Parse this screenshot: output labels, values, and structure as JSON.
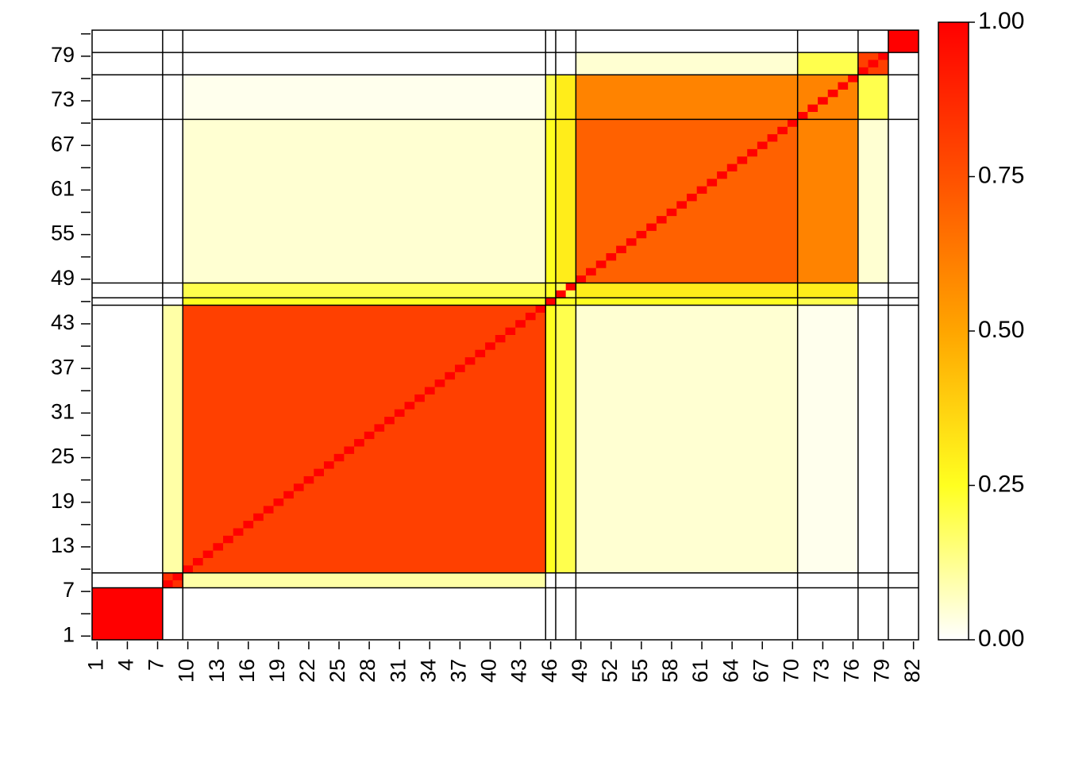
{
  "chart_data": {
    "type": "block-heatmap",
    "blocks": [
      [
        1,
        7
      ],
      [
        8,
        9
      ],
      [
        10,
        45
      ],
      [
        46,
        46
      ],
      [
        47,
        48
      ],
      [
        49,
        70
      ],
      [
        71,
        76
      ],
      [
        77,
        79
      ],
      [
        80,
        82
      ]
    ],
    "block_values": [
      [
        1,
        0,
        0,
        0,
        0,
        0,
        0,
        0,
        0
      ],
      [
        0,
        0.85,
        0.1,
        0,
        0,
        0,
        0,
        0,
        0
      ],
      [
        0,
        0.1,
        0.8,
        0.25,
        0.2,
        0.05,
        0.02,
        0,
        0
      ],
      [
        0,
        0,
        0.25,
        1,
        0.25,
        0.25,
        0.2,
        0,
        0
      ],
      [
        0,
        0,
        0.2,
        0.25,
        0.2,
        0.3,
        0.3,
        0,
        0
      ],
      [
        0,
        0,
        0.05,
        0.25,
        0.3,
        0.7,
        0.6,
        0.05,
        0
      ],
      [
        0,
        0,
        0.02,
        0.2,
        0.3,
        0.6,
        0.6,
        0.2,
        0
      ],
      [
        0,
        0,
        0,
        0,
        0,
        0.05,
        0.2,
        0.8,
        0
      ],
      [
        0,
        0,
        0,
        0,
        0,
        0,
        0,
        0,
        1
      ]
    ],
    "diagonal_value": 1,
    "xlim": [
      0.5,
      82.5
    ],
    "ylim": [
      0.5,
      82.5
    ],
    "xticks": [
      1,
      4,
      7,
      10,
      13,
      16,
      19,
      22,
      25,
      28,
      31,
      34,
      37,
      40,
      43,
      46,
      49,
      52,
      55,
      58,
      61,
      64,
      67,
      70,
      73,
      76,
      79,
      82
    ],
    "yticks": [
      1,
      7,
      13,
      19,
      25,
      31,
      37,
      43,
      49,
      55,
      61,
      67,
      73,
      79
    ],
    "yticks_minor": [
      4,
      10,
      16,
      22,
      28,
      34,
      40,
      46,
      52,
      58,
      64,
      70,
      76,
      82
    ],
    "colormap": [
      "#ffffff",
      "#ffff20",
      "#ffa500",
      "#ff5000",
      "#ff0000"
    ],
    "clim": [
      0,
      1
    ],
    "cticks": [
      {
        "value": 0,
        "label": "0.00"
      },
      {
        "value": 0.25,
        "label": "0.25"
      },
      {
        "value": 0.5,
        "label": "0.50"
      },
      {
        "value": 0.75,
        "label": "0.75"
      },
      {
        "value": 1,
        "label": "1.00"
      }
    ]
  }
}
